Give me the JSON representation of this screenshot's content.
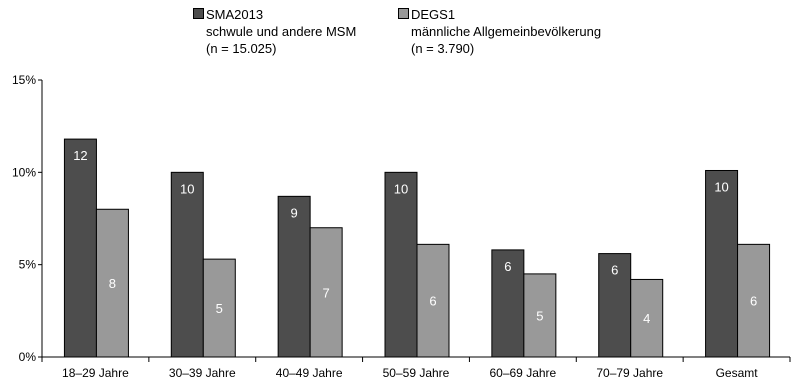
{
  "chart_data": {
    "type": "bar",
    "title": "",
    "xlabel": "",
    "ylabel": "",
    "ylim": [
      0,
      15
    ],
    "yticks": [
      "0%",
      "5%",
      "10%",
      "15%"
    ],
    "categories": [
      "18–29 Jahre",
      "30–39 Jahre",
      "40–49 Jahre",
      "50–59 Jahre",
      "60–69 Jahre",
      "70–79 Jahre",
      "Gesamt"
    ],
    "series": [
      {
        "name": "SMA2013",
        "legend_lines": [
          "SMA2013",
          "schwule und andere MSM",
          "(n = 15.025)"
        ],
        "color": "#4d4d4d",
        "values": [
          11.8,
          10.0,
          8.7,
          10.0,
          5.8,
          5.6,
          10.1
        ],
        "labels": [
          "12",
          "10",
          "9",
          "10",
          "6",
          "6",
          "10"
        ],
        "label_pos": "top"
      },
      {
        "name": "DEGS1",
        "legend_lines": [
          "DEGS1",
          "männliche Allgemeinbevölkerung",
          "(n = 3.790)"
        ],
        "color": "#999999",
        "values": [
          8.0,
          5.3,
          7.0,
          6.1,
          4.5,
          4.2,
          6.1
        ],
        "labels": [
          "8",
          "5",
          "7",
          "6",
          "5",
          "4",
          "6"
        ],
        "label_pos": "middle"
      }
    ],
    "grid": false,
    "legend_position": "top"
  }
}
